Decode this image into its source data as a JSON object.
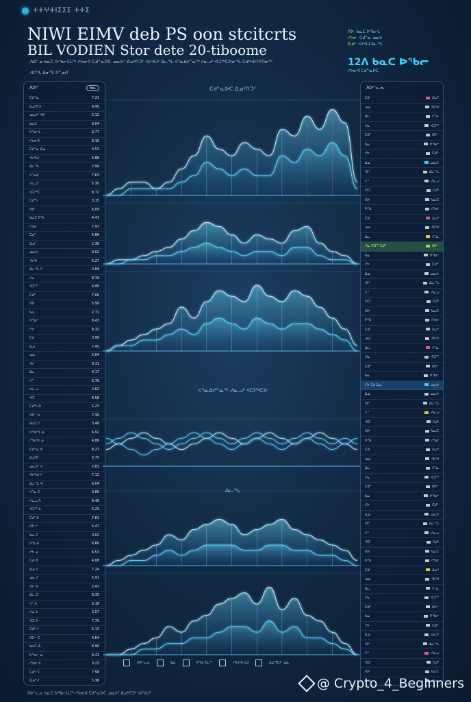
{
  "header": {
    "logo_text": "ⵜⵜⵖⵜⵏⵉⵉⵉ ⵜⵜⵉ",
    "title_line1": "NIWI EIMV deb PS oon stcitcrts",
    "title_line2": "BIL VODIEN Stor dete 20-tiboome",
    "subtitle": "ᐱᐃᓐᓄ ᑲᓇᑕ ᐅᖃᓕᒫᒐᖅ ᓯᕗᓂᐊ ᑕᑯᓐᓇᐅᑕ ᓄᓇᕗᑦ ᐃᓄᒃᑎᑐᑦ ᐊᓯᐊᒍᑦ ᐃᓚᖓ ᐸᕐᓇᐃᔪᓐᓇᖅ ᓱᓇᓗᒃ ᐊᑐᖅᑕᐅᓂᖓ ᑕᑯᒃᓴᐅᑎᑦᑎᓂᖅ",
    "author": "ᐊᑎᖓ ᐃᓂᖓ ᐅᓐᓄᐊ"
  },
  "stats": {
    "lines": [
      [
        "ᐱᐅ",
        "ᑲᓇᑕ ᐅᖃᓕᒫ"
      ],
      [
        "ᓯᕗᓂ",
        "ᑕᑯᓐᓇ ᓄᓇᕗ"
      ],
      [
        "ᐃᓄᒃ",
        "ᐊᓯᐊᒍ ᐃᓚᖓ"
      ]
    ],
    "big": "12ᐱ ᑲᓇᑕ ᐅᖃᓕ",
    "small": "ᓯᕗᓂᐊ ᑕᑯᓐᓇᐅᑕ"
  },
  "left_panel": {
    "header": "ᐱᐅᓪ",
    "badge": "ᑲᓇ",
    "rows": [
      [
        "ᑕᑯᓐᓇ",
        "7.21"
      ],
      [
        "ᐃᓄᒃᑎᑐ",
        "6.45"
      ],
      [
        "ᓄᓇᕗᑦ ᐊᓯ",
        "5.12"
      ],
      [
        "ᑲᓇᑕ",
        "8.04"
      ],
      [
        "ᐅᖃᓕᒫ",
        "3.77"
      ],
      [
        "ᓯᕗᓂᐊ",
        "9.16"
      ],
      [
        "ᑕᑯᓐᓇ ᐃᓄ",
        "4.53"
      ],
      [
        "ᐊᓯᐊᒍ",
        "6.88"
      ],
      [
        "ᐃᓚᖓ",
        "2.94"
      ],
      [
        "ᐸᕐᓇᐃ",
        "7.63"
      ],
      [
        "ᓱᓇᓗᒃ",
        "5.30"
      ],
      [
        "ᐊᑐᖅᑕ",
        "8.72"
      ],
      [
        "ᑕᑯᒃᓴ",
        "3.15"
      ],
      [
        "ᐱᐅᓪ",
        "6.09"
      ],
      [
        "ᑲᓇᑕ ᐅᖃ",
        "4.41"
      ],
      [
        "ᓯᕗᓂ",
        "7.97"
      ],
      [
        "ᑕᑯᓐ",
        "5.66"
      ],
      [
        "ᐃᓄᒃ",
        "2.38"
      ],
      [
        "ᓄᓇᕗ",
        "9.02"
      ],
      [
        "ᐊᓯᐊ",
        "6.27"
      ],
      [
        "ᐃᓚᖓ ᐸ",
        "3.84"
      ],
      [
        "ᓱᓇ",
        "8.19"
      ],
      [
        "ᐊᑐᖅ",
        "4.95"
      ],
      [
        "ᑕᑯᒃ",
        "7.06"
      ],
      [
        "ᐱᐅ",
        "5.58"
      ],
      [
        "ᑲᓇ",
        "2.71"
      ],
      [
        "ᐅᖃᓕ",
        "8.43"
      ],
      [
        "ᓯᕗ",
        "6.32"
      ],
      [
        "ᑕᑯ",
        "3.99"
      ],
      [
        "ᐃᓄ",
        "7.45"
      ],
      [
        "ᓄᓇ",
        "5.04"
      ],
      [
        "ᐊᓯ",
        "9.31"
      ],
      [
        "ᐃᓚ",
        "4.17"
      ],
      [
        "ᐸᕐ",
        "6.76"
      ],
      [
        "ᓱᓇ ᓗ",
        "2.62"
      ],
      [
        "ᐊᑐ",
        "8.58"
      ],
      [
        "ᑕᑯᒃᓴ ᐅ",
        "5.23"
      ],
      [
        "ᐱᐅᓪ ᑲ",
        "7.39"
      ],
      [
        "ᑲᓇᑕ ᓯ",
        "3.48"
      ],
      [
        "ᐅᖃᓕᒫ ᐃ",
        "6.91"
      ],
      [
        "ᓯᕗᓂᐊ ᓄ",
        "4.86"
      ],
      [
        "ᑕᑯᓐᓇ ᐊ",
        "8.27"
      ],
      [
        "ᐃᓄᒃᑎ",
        "5.75"
      ],
      [
        "ᓄᓇᕗᑦ ᐸ",
        "2.83"
      ],
      [
        "ᐊᓯᐊᒍ ᓱ",
        "7.12"
      ],
      [
        "ᐃᓚᖓ ᐊ",
        "6.04"
      ],
      [
        "ᐸᕐᓇ ᑕ",
        "3.66"
      ],
      [
        "ᓱᓇᓗ ᐱ",
        "9.48"
      ],
      [
        "ᐊᑐᖅ ᑲ",
        "4.29"
      ],
      [
        "ᑕᑯᒃ ᐅ",
        "7.81"
      ],
      [
        "ᐱᐅ ᓯ",
        "5.47"
      ],
      [
        "ᑲᓇ ᑕ",
        "3.02"
      ],
      [
        "ᐅᖃ ᐃ",
        "8.66"
      ],
      [
        "ᓯᕗ ᓄ",
        "6.53"
      ],
      [
        "ᑕᑯ ᐊ",
        "4.08"
      ],
      [
        "ᐃᓄ ᐸ",
        "7.24"
      ],
      [
        "ᓄᓇ ᓱ",
        "5.91"
      ],
      [
        "ᐊᓯ ᐊ",
        "2.47"
      ],
      [
        "ᐃᓚ ᑕ",
        "8.35"
      ],
      [
        "ᐸᕐ ᐱ",
        "6.18"
      ],
      [
        "ᓱᓇ ᑲ",
        "3.57"
      ],
      [
        "ᐊᑐ ᐅ",
        "7.70"
      ],
      [
        "ᑕᑯᒃ ᓯ",
        "5.13"
      ],
      [
        "ᐱᐅᓪ ᑕ",
        "4.64"
      ],
      [
        "ᑲᓇᑕ ᐃ",
        "8.90"
      ],
      [
        "ᐅᖃᓕ ᓄ",
        "6.41"
      ],
      [
        "ᓯᕗᓂ ᐊ",
        "3.23"
      ],
      [
        "ᑕᑯᓐ ᐸ",
        "7.58"
      ],
      [
        "ᐃᓄᒃ ᓱ",
        "5.36"
      ],
      [
        "ᓄᓇᕗ ᐊ",
        "2.99"
      ],
      [
        "ᐊᓯᐊ ᑕ",
        "8.14"
      ],
      [
        "ᐃᓚᖓ ᐱ",
        "6.67"
      ],
      [
        "ᐸᕐᓇ ᑲ",
        "4.22"
      ],
      [
        "ᓱᓇᓗ ᐅ",
        "7.93"
      ]
    ]
  },
  "right_panel": {
    "header": "ᐱᐅᓪᓚᕆ",
    "rows": [
      [
        "ᑕᑯ",
        "#e05a8a",
        "ᐃᓄᒃ"
      ],
      [
        "ᓄᓇ",
        "#c0c8d0",
        "ᐊᓯᐊ"
      ],
      [
        "ᐃᓚ",
        "#c0c8d0",
        "ᐸᕐᓇ"
      ],
      [
        "ᓱᓇ",
        "#c0c8d0",
        "ᐊᑐᖅ"
      ],
      [
        "ᑕᑯᒃ",
        "#c0c8d0",
        "ᐱᐅᓪ"
      ],
      [
        "ᑲᓇ",
        "#c0c8d0",
        "ᐅᖃᓕ"
      ],
      [
        "ᓯᕗ",
        "#c0c8d0",
        "ᑕᑯᓐ"
      ],
      [
        "ᐃᓄ",
        "#3ec8ff",
        "ᓄᓇᕗ"
      ],
      [
        "ᐊᓯ",
        "#c0c8d0",
        "ᐃᓚᖓ"
      ],
      [
        "ᐸᕐ",
        "#c0c8d0",
        "ᓱᓇᓗ"
      ],
      [
        "ᐊᑐ",
        "#c0c8d0",
        "ᑕᑯᒃ"
      ],
      [
        "ᐱᐅ",
        "#c0c8d0",
        "ᑲᓇᑕ"
      ],
      [
        "ᐅᖃ",
        "#c0c8d0",
        "ᓯᕗᓂ"
      ],
      [
        "ᑕᑯ",
        "#e05a8a",
        "ᐃᓄᒃ"
      ],
      [
        "ᓄᓇ",
        "#c0c8d0",
        "ᐊᓯᐊ"
      ],
      [
        "ᐃᓚ",
        "#e0c83e",
        "ᐸᕐᓇ"
      ],
      [
        "ᓱᓇ ᐊᑐᖅ ᑕᑯᒃ",
        "#8be06a",
        "ᐱᐅᓪ"
      ],
      [
        "ᑲᓇ",
        "#c0c8d0",
        "ᐅᖃᓕ"
      ],
      [
        "ᓯᕗ",
        "#c0c8d0",
        "ᑕᑯᓐ"
      ],
      [
        "ᐃᓄ",
        "#c0c8d0",
        "ᓄᓇᕗ"
      ],
      [
        "ᐊᓯ",
        "#c0c8d0",
        "ᐃᓚᖓ"
      ],
      [
        "ᐸᕐ",
        "#c0c8d0",
        "ᓱᓇᓗ"
      ],
      [
        "ᐊᑐ",
        "#c0c8d0",
        "ᑕᑯᒃ"
      ],
      [
        "ᐱᐅ",
        "#c0c8d0",
        "ᑲᓇᑕ"
      ],
      [
        "ᐅᖃ",
        "#c0c8d0",
        "ᓯᕗᓂ"
      ],
      [
        "ᑕᑯ",
        "#c0c8d0",
        "ᐃᓄᒃ"
      ],
      [
        "ᓄᓇ",
        "#c0c8d0",
        "ᐊᓯᐊ"
      ],
      [
        "ᐃᓚ",
        "#e05a8a",
        "ᐸᕐᓇ"
      ],
      [
        "ᓱᓇ",
        "#c0c8d0",
        "ᐊᑐᖅ"
      ],
      [
        "ᑕᑯᒃ",
        "#c0c8d0",
        "ᐱᐅᓪ"
      ],
      [
        "ᑲᓇ",
        "#c0c8d0",
        "ᐅᖃᓕ"
      ],
      [
        "ᓯᕗ ᑕᑯ ᐃᓄ",
        "#3ec8ff",
        "ᓄᓇᕗ"
      ],
      [
        "ᐃᓄ",
        "#c0c8d0",
        "ᓄᓇᕗ"
      ],
      [
        "ᐊᓯ",
        "#c0c8d0",
        "ᐃᓚᖓ"
      ],
      [
        "ᐸᕐ",
        "#e0c83e",
        "ᓱᓇᓗ"
      ],
      [
        "ᐊᑐ",
        "#c0c8d0",
        "ᑕᑯᒃ"
      ],
      [
        "ᐱᐅ",
        "#c0c8d0",
        "ᑲᓇᑕ"
      ],
      [
        "ᐅᖃ",
        "#c0c8d0",
        "ᓯᕗᓂ"
      ],
      [
        "ᑕᑯ",
        "#c0c8d0",
        "ᐃᓄᒃ"
      ],
      [
        "ᓄᓇ",
        "#c0c8d0",
        "ᐊᓯᐊ"
      ],
      [
        "ᐃᓚ",
        "#c0c8d0",
        "ᐸᕐᓇ"
      ],
      [
        "ᓱᓇ",
        "#c0c8d0",
        "ᐊᑐᖅ"
      ],
      [
        "ᑕᑯᒃ",
        "#c0c8d0",
        "ᐱᐅᓪ"
      ],
      [
        "ᑲᓇ",
        "#c0c8d0",
        "ᐅᖃᓕ"
      ],
      [
        "ᓯᕗ",
        "#c0c8d0",
        "ᑕᑯᓐ"
      ],
      [
        "ᐃᓄ",
        "#c0c8d0",
        "ᓄᓇᕗ"
      ],
      [
        "ᐊᓯ",
        "#c0c8d0",
        "ᐃᓚᖓ"
      ],
      [
        "ᐸᕐ",
        "#c0c8d0",
        "ᓱᓇᓗ"
      ],
      [
        "ᐊᑐ",
        "#c0c8d0",
        "ᑕᑯᒃ"
      ],
      [
        "ᐱᐅ",
        "#c0c8d0",
        "ᑲᓇᑕ"
      ],
      [
        "ᐅᖃ",
        "#c0c8d0",
        "ᓯᕗᓂ"
      ],
      [
        "ᑕᑯ",
        "#e0c83e",
        "ᐃᓄᒃ"
      ],
      [
        "ᓄᓇ",
        "#c0c8d0",
        "ᐊᓯᐊ"
      ],
      [
        "ᐃᓚ",
        "#c0c8d0",
        "ᐸᕐᓇ"
      ],
      [
        "ᓱᓇ",
        "#c0c8d0",
        "ᐊᑐᖅ"
      ],
      [
        "ᑕᑯᒃ",
        "#c0c8d0",
        "ᐱᐅᓪ"
      ],
      [
        "ᑲᓇ",
        "#c0c8d0",
        "ᐅᖃᓕ"
      ],
      [
        "ᓯᕗ",
        "#c0c8d0",
        "ᑕᑯᓐ"
      ],
      [
        "ᐃᓄ",
        "#c0c8d0",
        "ᓄᓇᕗ"
      ],
      [
        "ᐊᓯ",
        "#c0c8d0",
        "ᐃᓚᖓ"
      ],
      [
        "ᐸᕐ",
        "#e05a8a",
        "ᓱᓇᓗ"
      ],
      [
        "ᐊᑐ",
        "#c0c8d0",
        "ᑕᑯᒃ"
      ],
      [
        "ᐱᐅ",
        "#c0c8d0",
        "ᑲᓇᑕ"
      ],
      [
        "ᐅᖃ",
        "#c0c8d0",
        "ᓯᕗᓂ"
      ],
      [
        "ᑕᑯ",
        "#c0c8d0",
        "ᐃᓄᒃ"
      ],
      [
        "ᓄᓇ",
        "#c0c8d0",
        "ᐊᓯᐊ"
      ],
      [
        "ᐃᓚ",
        "#c0c8d0",
        "ᐸᕐᓇ"
      ],
      [
        "ᓱᓇ",
        "#c0c8d0",
        "ᐊᑐᖅ"
      ]
    ],
    "highlight_rows": [
      16,
      31
    ]
  },
  "legend": [
    "ᐱᐅᓪᓚᕆ",
    "ᑲᓇ",
    "ᐅᖃᓕᒫᒐᖅ",
    "ᓯᕗᓂᐊ ᑕᑯ",
    "ᐃᓄᒃᑎᑐᑦ ᓄᓇ"
  ],
  "footer": "ᐱᐅᓪᓚᕆ ᑲᓇᑕ ᐅᖃᓕᒫᒐᖅ ᓯᕗᓂᐊ ᑕᑯᓐᓇᐅᑕ ᓄᓇᕗᑦ ᐃᓄᒃᑎᑐᑦ ᐊᓯᐊᒍᑦ",
  "watermark": "@ Crypto_4_Beginners",
  "colors": {
    "glow": "#4fd0ff",
    "line": "#9fe6ff",
    "accent_pink": "#ff4f8b",
    "background": "#122a45"
  },
  "chart_data": [
    {
      "type": "area",
      "title": "ᑕᑯᓐᓇᐅᑕ ᐃᓄᒃᑎᑐᑦ",
      "x": [
        0,
        1,
        2,
        3,
        4,
        5,
        6,
        7,
        8,
        9,
        10,
        11,
        12,
        13,
        14,
        15,
        16,
        17,
        18,
        19,
        20
      ],
      "series": [
        {
          "values": [
            0,
            1,
            2,
            2,
            1,
            2,
            4,
            6,
            9,
            7,
            6,
            8,
            7,
            6,
            10,
            9,
            12,
            10,
            13,
            11,
            2
          ]
        },
        {
          "values": [
            0,
            0,
            1,
            1,
            1,
            1,
            2,
            3,
            5,
            4,
            3,
            4,
            3,
            3,
            6,
            5,
            7,
            6,
            8,
            6,
            1
          ]
        }
      ],
      "ylim": [
        0,
        14
      ]
    },
    {
      "type": "area",
      "title": "",
      "x": [
        0,
        1,
        2,
        3,
        4,
        5,
        6,
        7,
        8,
        9,
        10,
        11,
        12,
        13,
        14,
        15,
        16,
        17,
        18,
        19,
        20
      ],
      "series": [
        {
          "values": [
            0,
            1,
            1,
            2,
            3,
            4,
            6,
            8,
            10,
            9,
            7,
            5,
            7,
            6,
            5,
            8,
            9,
            5,
            3,
            2,
            0
          ]
        },
        {
          "values": [
            0,
            0,
            1,
            1,
            2,
            2,
            3,
            4,
            5,
            4,
            3,
            2,
            3,
            3,
            2,
            4,
            4,
            2,
            1,
            1,
            0
          ]
        }
      ],
      "ylim": [
        0,
        14
      ]
    },
    {
      "type": "area",
      "title": "",
      "x": [
        0,
        1,
        2,
        3,
        4,
        5,
        6,
        7,
        8,
        9,
        10,
        11,
        12,
        13,
        14,
        15,
        16,
        17,
        18,
        19,
        20
      ],
      "series": [
        {
          "values": [
            0,
            1,
            2,
            3,
            4,
            5,
            8,
            6,
            9,
            11,
            10,
            9,
            12,
            10,
            9,
            11,
            10,
            8,
            6,
            4,
            1
          ]
        },
        {
          "values": [
            0,
            1,
            1,
            2,
            2,
            3,
            4,
            3,
            5,
            6,
            5,
            4,
            6,
            5,
            4,
            5,
            5,
            4,
            3,
            2,
            0
          ]
        }
      ],
      "ylim": [
        0,
        14
      ]
    },
    {
      "type": "line",
      "title": "ᐸᕐᓇᐃᔪᓐᓇᖅ ᓱᓇᓗᒃ ᐊᑐᖅᑕᐅ",
      "x": [
        0,
        1,
        2,
        3,
        4,
        5,
        6,
        7,
        8,
        9,
        10,
        11,
        12,
        13,
        14,
        15,
        16,
        17,
        18,
        19,
        20
      ],
      "series": [
        {
          "values": [
            3,
            4,
            5,
            6,
            5,
            4,
            3,
            4,
            5,
            6,
            5,
            4,
            5,
            6,
            5,
            4,
            5,
            6,
            5,
            4,
            3
          ]
        },
        {
          "values": [
            5,
            4,
            3,
            2,
            3,
            4,
            5,
            6,
            5,
            4,
            3,
            4,
            5,
            4,
            3,
            4,
            5,
            4,
            3,
            4,
            5
          ]
        },
        {
          "values": [
            4,
            5,
            6,
            5,
            4,
            3,
            4,
            5,
            6,
            5,
            4,
            5,
            6,
            5,
            4,
            5,
            6,
            5,
            4,
            5,
            4
          ]
        }
      ],
      "ylim": [
        0,
        8
      ]
    },
    {
      "type": "area",
      "title": "ᐃᓚᖓ",
      "x": [
        0,
        1,
        2,
        3,
        4,
        5,
        6,
        7,
        8,
        9,
        10,
        11,
        12,
        13,
        14,
        15,
        16,
        17,
        18,
        19,
        20
      ],
      "series": [
        {
          "values": [
            0,
            1,
            2,
            3,
            4,
            6,
            5,
            7,
            8,
            9,
            8,
            6,
            7,
            8,
            9,
            7,
            6,
            5,
            4,
            3,
            1
          ]
        },
        {
          "values": [
            0,
            0,
            1,
            1,
            2,
            3,
            2,
            3,
            4,
            4,
            4,
            3,
            3,
            4,
            4,
            3,
            3,
            2,
            2,
            1,
            0
          ]
        }
      ],
      "ylim": [
        0,
        14
      ]
    },
    {
      "type": "area",
      "title": "",
      "x": [
        0,
        1,
        2,
        3,
        4,
        5,
        6,
        7,
        8,
        9,
        10,
        11,
        12,
        13,
        14,
        15,
        16,
        17,
        18,
        19,
        20
      ],
      "series": [
        {
          "values": [
            0,
            0,
            1,
            2,
            3,
            5,
            4,
            6,
            7,
            9,
            10,
            11,
            9,
            12,
            8,
            10,
            7,
            6,
            4,
            2,
            0
          ]
        },
        {
          "values": [
            0,
            0,
            0,
            1,
            1,
            2,
            2,
            3,
            3,
            4,
            5,
            5,
            4,
            6,
            4,
            5,
            3,
            3,
            2,
            1,
            0
          ]
        }
      ],
      "ylim": [
        0,
        14
      ]
    }
  ]
}
